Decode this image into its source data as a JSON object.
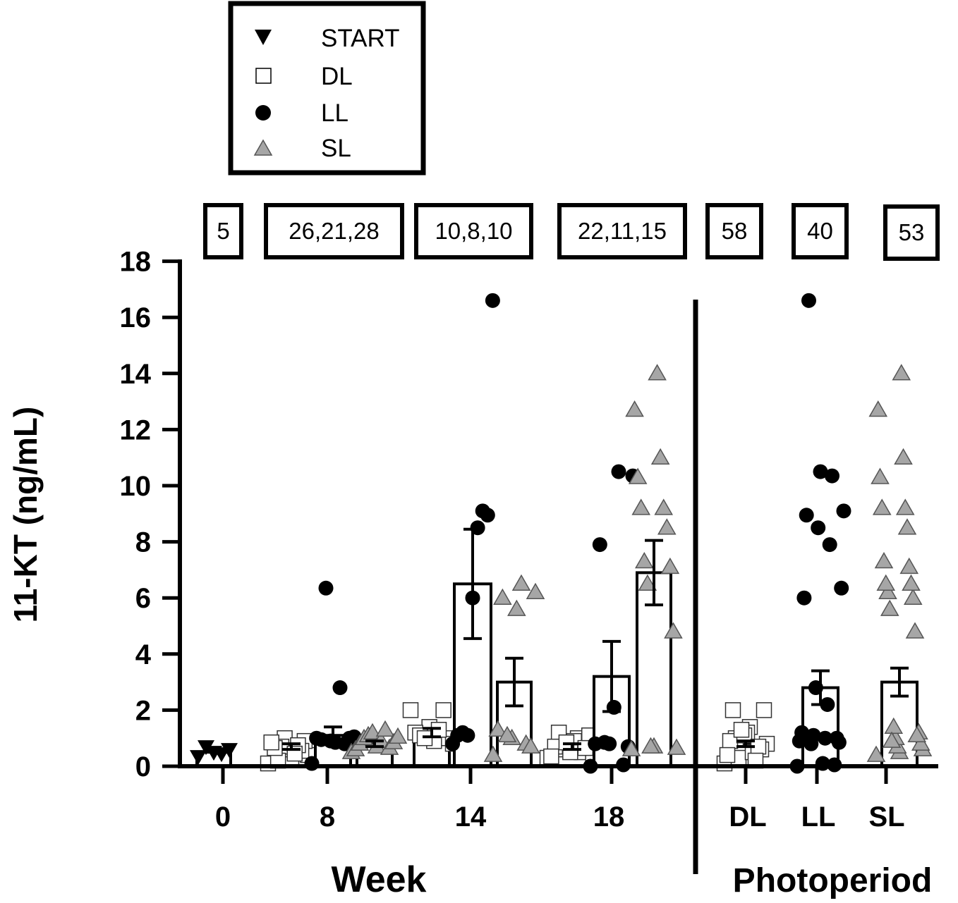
{
  "chart_data": {
    "type": "bar",
    "ylabel": "11-KT (ng/mL)",
    "ylim": [
      0,
      18
    ],
    "yticks": [
      0,
      2,
      4,
      6,
      8,
      10,
      12,
      14,
      16,
      18
    ],
    "sections": [
      {
        "title": "Week",
        "ticks": [
          "0",
          "8",
          "14",
          "18"
        ]
      },
      {
        "title": "Photoperiod",
        "ticks": [
          "DL",
          "LL",
          "SL"
        ]
      }
    ],
    "legend": [
      {
        "key": "START",
        "label": "START",
        "marker": "triangle-down",
        "fill": "#000000"
      },
      {
        "key": "DL",
        "label": "DL",
        "marker": "square",
        "fill": "#ffffff"
      },
      {
        "key": "LL",
        "label": "LL",
        "marker": "circle",
        "fill": "#000000"
      },
      {
        "key": "SL",
        "label": "SL",
        "marker": "triangle-up",
        "fill": "#a6a6a6"
      }
    ],
    "sample_sizes": [
      "5",
      "26,21,28",
      "10,8,10",
      "22,11,15",
      "58",
      "40",
      "53"
    ],
    "groups": [
      {
        "section": "Week",
        "tick": "0",
        "series": "START",
        "mean": 0.5,
        "sem": null,
        "points": [
          0.35,
          0.5,
          0.6,
          0.7,
          0.45
        ]
      },
      {
        "section": "Week",
        "tick": "8",
        "series": "DL",
        "mean": 0.7,
        "sem": 0.1,
        "points": [
          0.1,
          0.3,
          0.5,
          0.6,
          0.8,
          1.0,
          0.4,
          0.7,
          0.9,
          0.2,
          0.55,
          0.65,
          0.75,
          0.85,
          0.45
        ]
      },
      {
        "section": "Week",
        "tick": "8",
        "series": "LL",
        "mean": 1.1,
        "sem": 0.3,
        "points": [
          0.1,
          0.8,
          0.9,
          1.0,
          1.0,
          0.85,
          0.95,
          1.05,
          2.8,
          6.35
        ]
      },
      {
        "section": "Week",
        "tick": "8",
        "series": "SL",
        "mean": 0.8,
        "sem": 0.1,
        "points": [
          0.5,
          0.6,
          0.8,
          1.0,
          1.1,
          1.2,
          0.7,
          0.9,
          1.3,
          0.65,
          0.85,
          1.05
        ]
      },
      {
        "section": "Week",
        "tick": "14",
        "series": "DL",
        "mean": 1.2,
        "sem": 0.15,
        "points": [
          2.0,
          2.0,
          1.4,
          1.2,
          1.0,
          0.9,
          1.1,
          0.8,
          1.3,
          1.0
        ]
      },
      {
        "section": "Week",
        "tick": "14",
        "series": "LL",
        "mean": 6.5,
        "sem": 1.95,
        "points": [
          0.8,
          1.1,
          1.2,
          1.1,
          6.0,
          8.5,
          9.1,
          8.95,
          16.6
        ]
      },
      {
        "section": "Week",
        "tick": "14",
        "series": "SL",
        "mean": 3.0,
        "sem": 0.85,
        "points": [
          0.4,
          0.8,
          1.0,
          1.3,
          0.7,
          5.6,
          6.0,
          6.2,
          6.5,
          1.1
        ]
      },
      {
        "section": "Week",
        "tick": "18",
        "series": "DL",
        "mean": 0.7,
        "sem": 0.1,
        "points": [
          0.3,
          0.5,
          0.6,
          0.8,
          1.0,
          1.2,
          0.4,
          0.9,
          0.7,
          1.1,
          0.5,
          0.35,
          0.65,
          0.85
        ]
      },
      {
        "section": "Week",
        "tick": "18",
        "series": "LL",
        "mean": 3.2,
        "sem": 1.25,
        "points": [
          0.0,
          0.05,
          0.8,
          0.8,
          0.7,
          2.1,
          7.9,
          10.35,
          10.5,
          0.85
        ]
      },
      {
        "section": "Week",
        "tick": "18",
        "series": "SL",
        "mean": 6.9,
        "sem": 1.15,
        "points": [
          0.6,
          0.7,
          0.65,
          0.7,
          4.8,
          6.5,
          7.1,
          7.3,
          8.5,
          9.2,
          9.2,
          10.3,
          11.0,
          12.7,
          14.0
        ]
      },
      {
        "section": "Photoperiod",
        "tick": "DL",
        "series": "DL",
        "mean": 0.8,
        "sem": 0.1,
        "points": [
          0.1,
          0.3,
          0.5,
          0.8,
          1.0,
          1.4,
          2.0,
          2.0,
          1.2,
          0.6,
          0.9,
          1.1,
          0.7,
          0.4,
          1.3,
          0.2
        ]
      },
      {
        "section": "Photoperiod",
        "tick": "LL",
        "series": "LL",
        "mean": 2.8,
        "sem": 0.6,
        "points": [
          0.0,
          0.05,
          0.1,
          0.8,
          0.9,
          1.0,
          1.0,
          1.1,
          1.2,
          0.85,
          2.2,
          2.8,
          6.0,
          6.35,
          7.9,
          8.5,
          8.95,
          9.1,
          10.35,
          10.5,
          16.6
        ]
      },
      {
        "section": "Photoperiod",
        "tick": "SL",
        "series": "SL",
        "mean": 3.0,
        "sem": 0.5,
        "points": [
          0.4,
          0.5,
          0.6,
          0.7,
          0.8,
          1.0,
          1.2,
          1.4,
          1.1,
          0.9,
          4.8,
          5.6,
          6.0,
          6.2,
          6.5,
          6.5,
          7.1,
          7.3,
          8.5,
          9.2,
          9.2,
          10.3,
          11.0,
          12.7,
          14.0
        ]
      }
    ]
  }
}
